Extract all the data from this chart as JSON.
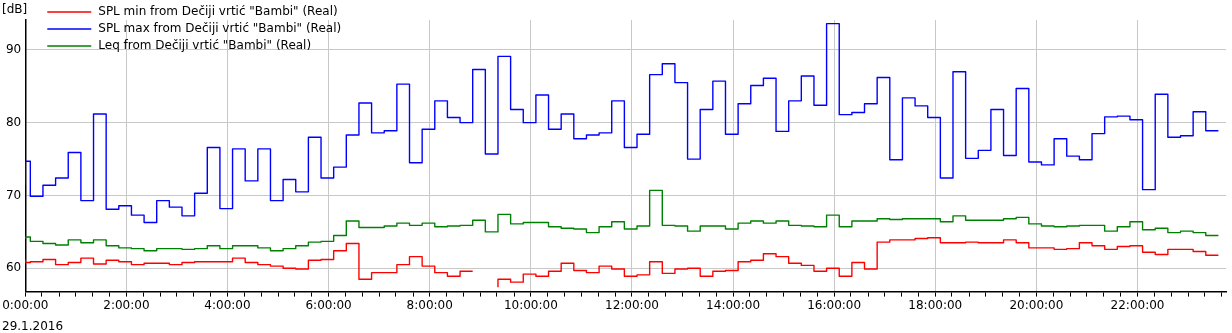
{
  "chart_data": {
    "type": "step",
    "ylabel": "[dB]",
    "annotations": [
      "29.1.2016"
    ],
    "legend": "top left",
    "grid": true,
    "xlim": [
      0,
      23.75
    ],
    "ylim": [
      56.8,
      94.1
    ],
    "yticks": [
      60,
      70,
      80,
      90
    ],
    "xticks": [
      {
        "value": 0,
        "label": "0:00:00"
      },
      {
        "value": 0.33,
        "label": null
      },
      {
        "value": 0.67,
        "label": null
      },
      {
        "value": 1,
        "label": null
      },
      {
        "value": 1.33,
        "label": null
      },
      {
        "value": 1.67,
        "label": null
      },
      {
        "value": 2,
        "label": "2:00:00"
      },
      {
        "value": 2.33,
        "label": null
      },
      {
        "value": 2.67,
        "label": null
      },
      {
        "value": 3,
        "label": null
      },
      {
        "value": 3.33,
        "label": null
      },
      {
        "value": 3.67,
        "label": null
      },
      {
        "value": 4,
        "label": "4:00:00"
      },
      {
        "value": 4.33,
        "label": null
      },
      {
        "value": 4.67,
        "label": null
      },
      {
        "value": 5,
        "label": null
      },
      {
        "value": 5.33,
        "label": null
      },
      {
        "value": 5.67,
        "label": null
      },
      {
        "value": 6,
        "label": "6:00:00"
      },
      {
        "value": 6.33,
        "label": null
      },
      {
        "value": 6.67,
        "label": null
      },
      {
        "value": 7,
        "label": null
      },
      {
        "value": 7.33,
        "label": null
      },
      {
        "value": 7.67,
        "label": null
      },
      {
        "value": 8,
        "label": "8:00:00"
      },
      {
        "value": 8.33,
        "label": null
      },
      {
        "value": 8.67,
        "label": null
      },
      {
        "value": 9,
        "label": null
      },
      {
        "value": 9.33,
        "label": null
      },
      {
        "value": 9.67,
        "label": null
      },
      {
        "value": 10,
        "label": "10:00:00"
      },
      {
        "value": 10.33,
        "label": null
      },
      {
        "value": 10.67,
        "label": null
      },
      {
        "value": 11,
        "label": null
      },
      {
        "value": 11.33,
        "label": null
      },
      {
        "value": 11.67,
        "label": null
      },
      {
        "value": 12,
        "label": "12:00:00"
      },
      {
        "value": 12.33,
        "label": null
      },
      {
        "value": 12.67,
        "label": null
      },
      {
        "value": 13,
        "label": null
      },
      {
        "value": 13.33,
        "label": null
      },
      {
        "value": 13.67,
        "label": null
      },
      {
        "value": 14,
        "label": "14:00:00"
      },
      {
        "value": 14.33,
        "label": null
      },
      {
        "value": 14.67,
        "label": null
      },
      {
        "value": 15,
        "label": null
      },
      {
        "value": 15.33,
        "label": null
      },
      {
        "value": 15.67,
        "label": null
      },
      {
        "value": 16,
        "label": "16:00:00"
      },
      {
        "value": 16.33,
        "label": null
      },
      {
        "value": 16.67,
        "label": null
      },
      {
        "value": 17,
        "label": null
      },
      {
        "value": 17.33,
        "label": null
      },
      {
        "value": 17.67,
        "label": null
      },
      {
        "value": 18,
        "label": "18:00:00"
      },
      {
        "value": 18.33,
        "label": null
      },
      {
        "value": 18.67,
        "label": null
      },
      {
        "value": 19,
        "label": null
      },
      {
        "value": 19.33,
        "label": null
      },
      {
        "value": 19.67,
        "label": null
      },
      {
        "value": 20,
        "label": "20:00:00"
      },
      {
        "value": 20.33,
        "label": null
      },
      {
        "value": 20.67,
        "label": null
      },
      {
        "value": 21,
        "label": null
      },
      {
        "value": 21.33,
        "label": null
      },
      {
        "value": 21.67,
        "label": null
      },
      {
        "value": 22,
        "label": "22:00:00"
      },
      {
        "value": 22.33,
        "label": null
      },
      {
        "value": 22.67,
        "label": null
      },
      {
        "value": 23,
        "label": null
      },
      {
        "value": 23.33,
        "label": null
      },
      {
        "value": 23.67,
        "label": null
      }
    ],
    "x": [
      0,
      0.1,
      0.35,
      0.6,
      0.85,
      1.1,
      1.35,
      1.6,
      1.85,
      2.1,
      2.35,
      2.6,
      2.85,
      3.1,
      3.35,
      3.6,
      3.85,
      4.1,
      4.35,
      4.6,
      4.85,
      5.1,
      5.35,
      5.6,
      5.85,
      6.1,
      6.35,
      6.6,
      6.85,
      7.1,
      7.35,
      7.6,
      7.85,
      8.1,
      8.35,
      8.6,
      8.85,
      9.1,
      9.35,
      9.6,
      9.85,
      10.1,
      10.35,
      10.6,
      10.85,
      11.1,
      11.35,
      11.6,
      11.85,
      12.1,
      12.35,
      12.6,
      12.85,
      13.1,
      13.35,
      13.6,
      13.85,
      14.1,
      14.35,
      14.6,
      14.85,
      15.1,
      15.35,
      15.6,
      15.85,
      16.1,
      16.35,
      16.6,
      16.85,
      17.1,
      17.35,
      17.6,
      17.85,
      18.1,
      18.35,
      18.6,
      18.85,
      19.1,
      19.35,
      19.6,
      19.85,
      20.1,
      20.35,
      20.6,
      20.85,
      21.1,
      21.35,
      21.6,
      21.85,
      22.1,
      22.35,
      22.6,
      22.85,
      23.1,
      23.35,
      23.6
    ],
    "series": [
      {
        "name": "SPL min from Dečiji vrtić \"Bambi\" (Real)",
        "color": "#ff0000",
        "values": [
          61.2,
          60.8,
          60.9,
          61.2,
          60.5,
          60.8,
          61.4,
          60.6,
          61.1,
          60.9,
          60.5,
          60.7,
          60.7,
          60.5,
          60.8,
          60.9,
          60.9,
          60.9,
          61.4,
          60.8,
          60.5,
          60.3,
          60.0,
          59.9,
          61.1,
          61.2,
          62.4,
          63.4,
          58.5,
          59.4,
          59.4,
          60.5,
          61.6,
          60.3,
          59.4,
          58.9,
          59.6,
          null,
          57.4,
          58.5,
          58.1,
          59.2,
          58.9,
          59.6,
          60.7,
          59.7,
          59.4,
          60.3,
          59.9,
          58.9,
          59.1,
          60.9,
          59.3,
          59.9,
          60.0,
          58.9,
          59.6,
          59.7,
          60.9,
          61.1,
          62.0,
          61.6,
          60.7,
          60.4,
          59.6,
          60.0,
          58.9,
          60.8,
          59.9,
          63.6,
          63.9,
          63.9,
          64.1,
          64.2,
          63.5,
          63.5,
          63.6,
          63.5,
          63.5,
          63.9,
          63.5,
          62.8,
          62.8,
          62.6,
          62.7,
          63.5,
          63.1,
          62.6,
          63.0,
          63.1,
          62.2,
          61.9,
          62.6,
          62.6,
          62.3,
          61.8
        ]
      },
      {
        "name": "SPL max from Dečiji vrtić \"Bambi\" (Real)",
        "color": "#0000ff",
        "values": [
          71.4,
          74.7,
          69.9,
          71.4,
          72.4,
          75.9,
          69.3,
          81.2,
          68.1,
          68.6,
          67.3,
          66.3,
          69.3,
          68.4,
          67.2,
          70.3,
          76.6,
          68.2,
          76.4,
          72.0,
          76.4,
          69.3,
          72.2,
          70.5,
          78.0,
          72.4,
          73.9,
          78.3,
          82.7,
          78.6,
          78.9,
          85.3,
          74.5,
          79.1,
          83.0,
          80.7,
          80.0,
          87.3,
          75.7,
          89.1,
          81.8,
          80.0,
          83.8,
          79.1,
          81.2,
          77.8,
          78.3,
          78.6,
          83.0,
          76.6,
          78.4,
          86.6,
          88.1,
          85.5,
          75.0,
          81.8,
          85.7,
          78.4,
          82.6,
          85.1,
          86.1,
          78.8,
          83.0,
          86.4,
          82.4,
          93.6,
          81.1,
          81.4,
          82.6,
          86.2,
          74.9,
          83.4,
          82.3,
          80.7,
          72.4,
          87.0,
          75.1,
          76.2,
          81.8,
          75.5,
          84.7,
          74.6,
          74.2,
          77.8,
          75.4,
          74.9,
          78.5,
          80.8,
          80.9,
          80.4,
          70.8,
          83.9,
          78.0,
          78.2,
          81.5,
          78.9
        ]
      },
      {
        "name": "Leq from Dečiji vrtić \"Bambi\" (Real)",
        "color": "#008000",
        "values": [
          64.1,
          64.3,
          63.7,
          63.4,
          63.2,
          63.9,
          63.5,
          63.9,
          63.1,
          62.8,
          62.7,
          62.4,
          62.7,
          62.7,
          62.6,
          62.7,
          63.1,
          62.7,
          63.1,
          63.1,
          62.8,
          62.4,
          62.7,
          63.1,
          63.6,
          63.7,
          64.5,
          66.5,
          65.6,
          65.6,
          65.8,
          66.2,
          65.9,
          66.2,
          65.7,
          65.8,
          65.9,
          66.6,
          65.0,
          67.4,
          66.1,
          66.3,
          66.3,
          65.7,
          65.5,
          65.4,
          64.9,
          65.7,
          66.4,
          65.4,
          65.8,
          70.7,
          65.9,
          65.8,
          65.1,
          65.8,
          65.8,
          65.4,
          66.2,
          66.5,
          66.2,
          66.5,
          65.9,
          65.8,
          65.7,
          67.3,
          65.7,
          66.5,
          66.5,
          66.8,
          66.7,
          66.8,
          66.8,
          66.8,
          66.4,
          67.2,
          66.6,
          66.6,
          66.6,
          66.8,
          67.0,
          66.1,
          65.8,
          65.7,
          65.8,
          65.9,
          65.9,
          65.1,
          65.7,
          66.4,
          65.3,
          65.5,
          64.9,
          65.1,
          64.9,
          64.5
        ]
      }
    ]
  }
}
